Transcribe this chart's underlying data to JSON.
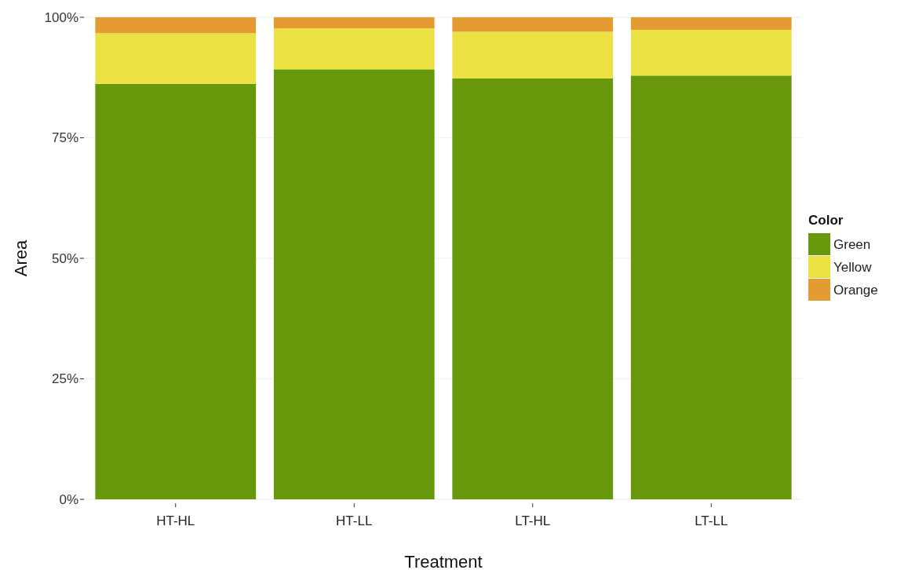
{
  "chart_data": {
    "type": "bar",
    "stacked": true,
    "xlabel": "Treatment",
    "ylabel": "Area",
    "legend_title": "Color",
    "legend": "right",
    "grid": "y",
    "categories": [
      "HT-HL",
      "HT-LL",
      "LT-HL",
      "LT-LL"
    ],
    "series": [
      {
        "name": "Green",
        "color": "#67970a",
        "values": [
          86.2,
          89.2,
          87.3,
          87.9
        ]
      },
      {
        "name": "Yellow",
        "color": "#ece142",
        "values": [
          10.5,
          8.5,
          9.7,
          9.5
        ]
      },
      {
        "name": "Orange",
        "color": "#e49b31",
        "values": [
          3.3,
          2.3,
          3.0,
          2.6
        ]
      }
    ],
    "ylim": [
      0,
      100
    ],
    "yticks": [
      {
        "value": 0,
        "label": "0%"
      },
      {
        "value": 25,
        "label": "25%"
      },
      {
        "value": 50,
        "label": "50%"
      },
      {
        "value": 75,
        "label": "75%"
      },
      {
        "value": 100,
        "label": "100%"
      }
    ]
  }
}
